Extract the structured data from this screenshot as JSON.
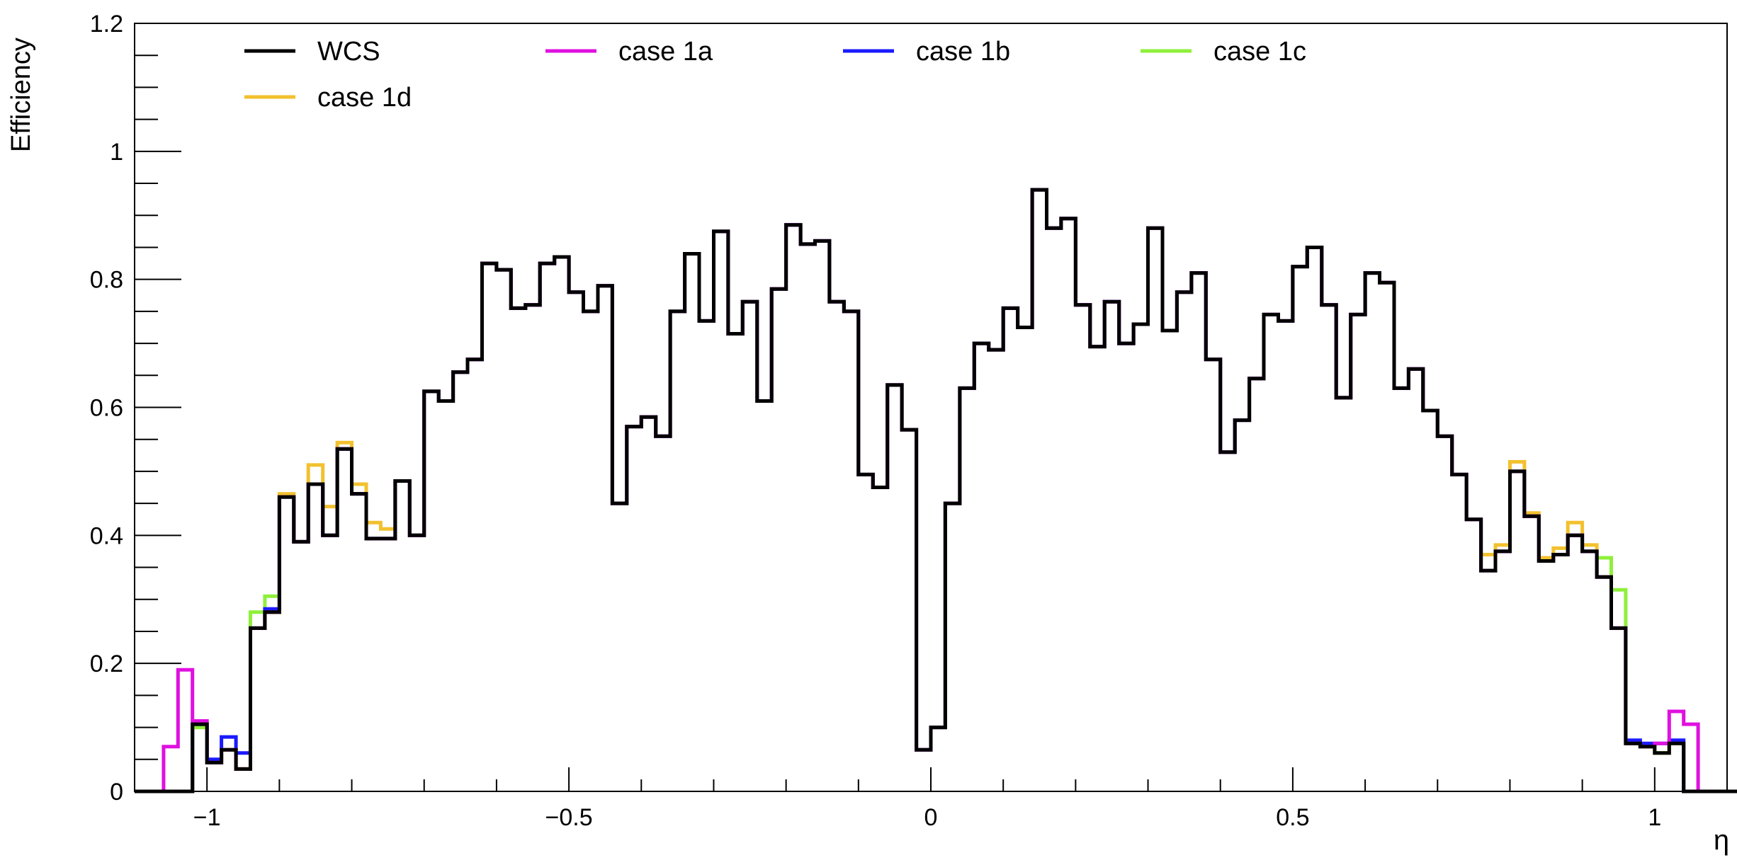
{
  "chart_data": {
    "type": "line",
    "title": "",
    "xlabel": "η",
    "ylabel": "Efficiency",
    "xlim": [
      -1.1,
      1.1
    ],
    "ylim": [
      0,
      1.2
    ],
    "grid": false,
    "legend_position": "top",
    "bin_width": 0.02,
    "x_ticks": [
      {
        "value": -1,
        "label": "−1"
      },
      {
        "value": -0.5,
        "label": "−0.5"
      },
      {
        "value": 0,
        "label": "0"
      },
      {
        "value": 0.5,
        "label": "0.5"
      },
      {
        "value": 1,
        "label": "1"
      }
    ],
    "y_ticks": [
      {
        "value": 0,
        "label": "0"
      },
      {
        "value": 0.2,
        "label": "0.2"
      },
      {
        "value": 0.4,
        "label": "0.4"
      },
      {
        "value": 0.6,
        "label": "0.6"
      },
      {
        "value": 0.8,
        "label": "0.8"
      },
      {
        "value": 1,
        "label": "1"
      },
      {
        "value": 1.2,
        "label": "1.2"
      }
    ],
    "series": [
      {
        "name": "case 1d",
        "color": "#f2c12e",
        "x_start": -1.1,
        "values": [
          0,
          0,
          0,
          0,
          0.1,
          0.045,
          0.065,
          0.035,
          0.255,
          0.28,
          0.465,
          0.39,
          0.51,
          0.445,
          0.545,
          0.48,
          0.42,
          0.41,
          0.485,
          0.4,
          0.625,
          0.61,
          0.655,
          0.675,
          0.825,
          0.815,
          0.755,
          0.76,
          0.825,
          0.835,
          0.78,
          0.75,
          0.79,
          0.45,
          0.57,
          0.585,
          0.555,
          0.75,
          0.84,
          0.735,
          0.875,
          0.715,
          0.765,
          0.61,
          0.785,
          0.885,
          0.855,
          0.86,
          0.765,
          0.75,
          0.495,
          0.475,
          0.635,
          0.565,
          0.065,
          0.1,
          0.45,
          0.63,
          0.7,
          0.69,
          0.755,
          0.725,
          0.94,
          0.88,
          0.895,
          0.76,
          0.695,
          0.765,
          0.7,
          0.73,
          0.88,
          0.72,
          0.78,
          0.81,
          0.675,
          0.53,
          0.58,
          0.645,
          0.745,
          0.735,
          0.82,
          0.85,
          0.76,
          0.615,
          0.745,
          0.81,
          0.795,
          0.63,
          0.66,
          0.595,
          0.555,
          0.495,
          0.425,
          0.37,
          0.385,
          0.515,
          0.435,
          0.365,
          0.38,
          0.42,
          0.385,
          0.335,
          0.255,
          0.075,
          0.07,
          0.06,
          0.075,
          0,
          0,
          0,
          0
        ]
      },
      {
        "name": "case 1c",
        "color": "#8ef03a",
        "x_start": -1.1,
        "values": [
          0,
          0,
          0,
          0,
          0.1,
          0.045,
          0.065,
          0.035,
          0.28,
          0.305,
          0.46,
          0.39,
          0.48,
          0.4,
          0.535,
          0.465,
          0.395,
          0.395,
          0.485,
          0.4,
          0.625,
          0.61,
          0.655,
          0.675,
          0.825,
          0.815,
          0.755,
          0.76,
          0.825,
          0.835,
          0.78,
          0.75,
          0.79,
          0.45,
          0.57,
          0.585,
          0.555,
          0.75,
          0.84,
          0.735,
          0.875,
          0.715,
          0.765,
          0.61,
          0.785,
          0.885,
          0.855,
          0.86,
          0.765,
          0.75,
          0.495,
          0.475,
          0.635,
          0.565,
          0.065,
          0.1,
          0.45,
          0.63,
          0.7,
          0.69,
          0.755,
          0.725,
          0.94,
          0.88,
          0.895,
          0.76,
          0.695,
          0.765,
          0.7,
          0.73,
          0.88,
          0.72,
          0.78,
          0.81,
          0.675,
          0.53,
          0.58,
          0.645,
          0.745,
          0.735,
          0.82,
          0.85,
          0.76,
          0.615,
          0.745,
          0.81,
          0.795,
          0.63,
          0.66,
          0.595,
          0.555,
          0.495,
          0.425,
          0.345,
          0.375,
          0.5,
          0.43,
          0.36,
          0.37,
          0.4,
          0.375,
          0.365,
          0.315,
          0.075,
          0.07,
          0.06,
          0.075,
          0,
          0,
          0,
          0
        ]
      },
      {
        "name": "case 1b",
        "color": "#1a1aff",
        "x_start": -1.1,
        "values": [
          0,
          0,
          0,
          0,
          0.105,
          0.05,
          0.085,
          0.06,
          0.255,
          0.285,
          0.46,
          0.39,
          0.48,
          0.4,
          0.535,
          0.465,
          0.395,
          0.395,
          0.485,
          0.4,
          0.625,
          0.61,
          0.655,
          0.675,
          0.825,
          0.815,
          0.755,
          0.76,
          0.825,
          0.835,
          0.78,
          0.75,
          0.79,
          0.45,
          0.57,
          0.585,
          0.555,
          0.75,
          0.84,
          0.735,
          0.875,
          0.715,
          0.765,
          0.61,
          0.785,
          0.885,
          0.855,
          0.86,
          0.765,
          0.75,
          0.495,
          0.475,
          0.635,
          0.565,
          0.065,
          0.1,
          0.45,
          0.63,
          0.7,
          0.69,
          0.755,
          0.725,
          0.94,
          0.88,
          0.895,
          0.76,
          0.695,
          0.765,
          0.7,
          0.73,
          0.88,
          0.72,
          0.78,
          0.81,
          0.675,
          0.53,
          0.58,
          0.645,
          0.745,
          0.735,
          0.82,
          0.85,
          0.76,
          0.615,
          0.745,
          0.81,
          0.795,
          0.63,
          0.66,
          0.595,
          0.555,
          0.495,
          0.425,
          0.345,
          0.375,
          0.5,
          0.43,
          0.36,
          0.37,
          0.4,
          0.375,
          0.335,
          0.255,
          0.08,
          0.075,
          0.075,
          0.08,
          0,
          0,
          0,
          0
        ]
      },
      {
        "name": "case 1a",
        "color": "#e010e0",
        "x_start": -1.1,
        "values": [
          0,
          0,
          0.07,
          0.19,
          0.11,
          0.045,
          0.065,
          0.035,
          0.255,
          0.28,
          0.46,
          0.39,
          0.48,
          0.4,
          0.535,
          0.465,
          0.395,
          0.395,
          0.485,
          0.4,
          0.625,
          0.61,
          0.655,
          0.675,
          0.825,
          0.815,
          0.755,
          0.76,
          0.825,
          0.835,
          0.78,
          0.75,
          0.79,
          0.45,
          0.57,
          0.585,
          0.555,
          0.75,
          0.84,
          0.735,
          0.875,
          0.715,
          0.765,
          0.61,
          0.785,
          0.885,
          0.855,
          0.86,
          0.765,
          0.75,
          0.495,
          0.475,
          0.635,
          0.565,
          0.065,
          0.1,
          0.45,
          0.63,
          0.7,
          0.69,
          0.755,
          0.725,
          0.94,
          0.88,
          0.895,
          0.76,
          0.695,
          0.765,
          0.7,
          0.73,
          0.88,
          0.72,
          0.78,
          0.81,
          0.675,
          0.53,
          0.58,
          0.645,
          0.745,
          0.735,
          0.82,
          0.85,
          0.76,
          0.615,
          0.745,
          0.81,
          0.795,
          0.63,
          0.66,
          0.595,
          0.555,
          0.495,
          0.425,
          0.345,
          0.375,
          0.5,
          0.43,
          0.36,
          0.37,
          0.4,
          0.375,
          0.335,
          0.255,
          0.075,
          0.07,
          0.075,
          0.125,
          0.105,
          0,
          0,
          0
        ]
      },
      {
        "name": "WCS",
        "color": "#000000",
        "x_start": -1.1,
        "values": [
          0,
          0,
          0,
          0,
          0.105,
          0.045,
          0.065,
          0.035,
          0.255,
          0.28,
          0.46,
          0.39,
          0.48,
          0.4,
          0.535,
          0.465,
          0.395,
          0.395,
          0.485,
          0.4,
          0.625,
          0.61,
          0.655,
          0.675,
          0.825,
          0.815,
          0.755,
          0.76,
          0.825,
          0.835,
          0.78,
          0.75,
          0.79,
          0.45,
          0.57,
          0.585,
          0.555,
          0.75,
          0.84,
          0.735,
          0.875,
          0.715,
          0.765,
          0.61,
          0.785,
          0.885,
          0.855,
          0.86,
          0.765,
          0.75,
          0.495,
          0.475,
          0.635,
          0.565,
          0.065,
          0.1,
          0.45,
          0.63,
          0.7,
          0.69,
          0.755,
          0.725,
          0.94,
          0.88,
          0.895,
          0.76,
          0.695,
          0.765,
          0.7,
          0.73,
          0.88,
          0.72,
          0.78,
          0.81,
          0.675,
          0.53,
          0.58,
          0.645,
          0.745,
          0.735,
          0.82,
          0.85,
          0.76,
          0.615,
          0.745,
          0.81,
          0.795,
          0.63,
          0.66,
          0.595,
          0.555,
          0.495,
          0.425,
          0.345,
          0.375,
          0.5,
          0.43,
          0.36,
          0.37,
          0.4,
          0.375,
          0.335,
          0.255,
          0.075,
          0.07,
          0.06,
          0.075,
          0,
          0,
          0,
          0
        ]
      }
    ],
    "legend": [
      {
        "name": "WCS",
        "color": "#000000"
      },
      {
        "name": "case 1a",
        "color": "#e010e0"
      },
      {
        "name": "case 1b",
        "color": "#1a1aff"
      },
      {
        "name": "case 1c",
        "color": "#8ef03a"
      },
      {
        "name": "case 1d",
        "color": "#f2c12e"
      }
    ]
  }
}
